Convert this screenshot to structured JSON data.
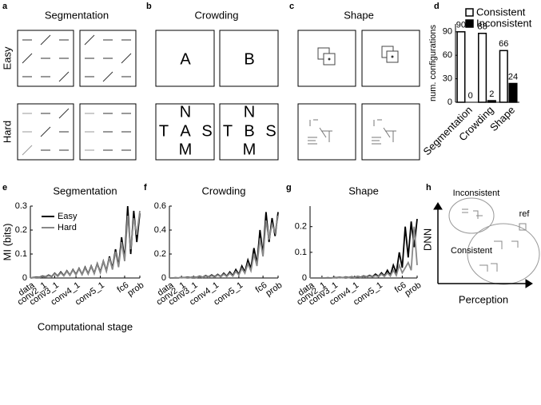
{
  "panel_letters": [
    "a",
    "b",
    "c",
    "d",
    "e",
    "f",
    "g",
    "h"
  ],
  "stimuli": {
    "titles": [
      "Segmentation",
      "Crowding",
      "Shape"
    ],
    "rows": [
      "Easy",
      "Hard"
    ],
    "crowding": {
      "easy": [
        "A",
        "B"
      ],
      "hard": [
        [
          "N",
          "T",
          "A",
          "S",
          "M"
        ],
        [
          "N",
          "T",
          "B",
          "S",
          "M"
        ]
      ]
    }
  },
  "diagram": {
    "groups": [
      "Inconsistent",
      "Consistent"
    ],
    "ref": "ref",
    "y_label": "DNN",
    "x_label": "Perception"
  },
  "chart_data": [
    {
      "type": "bar",
      "y_label": "num. configurations",
      "categories": [
        "Segmentation",
        "Crowding",
        "Shape"
      ],
      "series": [
        {
          "name": "Consistent",
          "color": "#ffffff",
          "values": [
            90,
            88,
            66
          ]
        },
        {
          "name": "Inconsistent",
          "color": "#000000",
          "values": [
            0,
            2,
            24
          ]
        }
      ],
      "ylim": [
        0,
        100
      ],
      "yticks": [
        0,
        30,
        60,
        90
      ],
      "legend": "top-right"
    },
    {
      "type": "line",
      "title": "Segmentation",
      "y_label": "MI (bits)",
      "x_label": "Computational stage",
      "x": [
        0,
        1,
        2,
        3,
        4,
        5,
        6,
        7,
        8,
        9,
        10,
        11,
        12,
        13,
        14,
        15,
        16,
        17,
        18,
        19,
        20,
        21,
        22,
        23,
        24,
        25,
        26,
        27,
        28,
        29,
        30,
        31,
        32,
        33,
        34,
        35,
        36
      ],
      "xlim": [
        0,
        36
      ],
      "xticks": [
        {
          "value": 0,
          "label": "data"
        },
        {
          "value": 4,
          "label": "conv2_1"
        },
        {
          "value": 8,
          "label": "conv3_1"
        },
        {
          "value": 15,
          "label": "conv4_1"
        },
        {
          "value": 23,
          "label": "conv5_1"
        },
        {
          "value": 31,
          "label": "fc6"
        },
        {
          "value": 36,
          "label": "prob"
        }
      ],
      "ylim": [
        0,
        0.3
      ],
      "yticks": [
        0,
        0.1,
        0.2,
        0.3
      ],
      "legend": "top-left",
      "series": [
        {
          "name": "Easy",
          "color": "#000000",
          "values": [
            0,
            0.002,
            0.004,
            0.003,
            0.008,
            0.005,
            0.012,
            0.006,
            0.02,
            0.008,
            0.025,
            0.01,
            0.03,
            0.012,
            0.035,
            0.015,
            0.04,
            0.015,
            0.045,
            0.018,
            0.05,
            0.02,
            0.06,
            0.025,
            0.07,
            0.03,
            0.09,
            0.04,
            0.12,
            0.05,
            0.17,
            0.08,
            0.3,
            0.1,
            0.28,
            0.15,
            0.27
          ]
        },
        {
          "name": "Hard",
          "color": "#888888",
          "values": [
            0,
            0.001,
            0.003,
            0.002,
            0.006,
            0.004,
            0.01,
            0.005,
            0.018,
            0.007,
            0.022,
            0.009,
            0.028,
            0.011,
            0.033,
            0.013,
            0.038,
            0.014,
            0.042,
            0.016,
            0.048,
            0.018,
            0.058,
            0.022,
            0.068,
            0.028,
            0.085,
            0.035,
            0.11,
            0.045,
            0.15,
            0.07,
            0.26,
            0.12,
            0.25,
            0.18,
            0.28
          ]
        }
      ]
    },
    {
      "type": "line",
      "title": "Crowding",
      "x": [
        0,
        1,
        2,
        3,
        4,
        5,
        6,
        7,
        8,
        9,
        10,
        11,
        12,
        13,
        14,
        15,
        16,
        17,
        18,
        19,
        20,
        21,
        22,
        23,
        24,
        25,
        26,
        27,
        28,
        29,
        30,
        31,
        32,
        33,
        34,
        35,
        36
      ],
      "xlim": [
        0,
        36
      ],
      "xticks": [
        {
          "value": 0,
          "label": "data"
        },
        {
          "value": 4,
          "label": "conv2_1"
        },
        {
          "value": 8,
          "label": "conv3_1"
        },
        {
          "value": 15,
          "label": "conv4_1"
        },
        {
          "value": 23,
          "label": "conv5_1"
        },
        {
          "value": 31,
          "label": "fc6"
        },
        {
          "value": 36,
          "label": "prob"
        }
      ],
      "ylim": [
        0,
        0.6
      ],
      "yticks": [
        0,
        0.2,
        0.4,
        0.6
      ],
      "series": [
        {
          "color": "#000000",
          "values": [
            0,
            0,
            0.002,
            0.001,
            0.005,
            0.003,
            0.008,
            0.004,
            0.01,
            0.005,
            0.015,
            0.006,
            0.02,
            0.008,
            0.025,
            0.01,
            0.03,
            0.012,
            0.04,
            0.015,
            0.05,
            0.02,
            0.07,
            0.03,
            0.1,
            0.05,
            0.15,
            0.08,
            0.25,
            0.12,
            0.4,
            0.2,
            0.55,
            0.3,
            0.5,
            0.35,
            0.55
          ]
        },
        {
          "color": "#888888",
          "values": [
            0,
            0,
            0.001,
            0.001,
            0.004,
            0.002,
            0.006,
            0.003,
            0.008,
            0.004,
            0.012,
            0.005,
            0.016,
            0.006,
            0.02,
            0.008,
            0.025,
            0.01,
            0.032,
            0.012,
            0.04,
            0.016,
            0.055,
            0.025,
            0.08,
            0.04,
            0.12,
            0.06,
            0.2,
            0.1,
            0.33,
            0.18,
            0.48,
            0.32,
            0.45,
            0.38,
            0.52
          ]
        }
      ]
    },
    {
      "type": "line",
      "title": "Shape",
      "x": [
        0,
        1,
        2,
        3,
        4,
        5,
        6,
        7,
        8,
        9,
        10,
        11,
        12,
        13,
        14,
        15,
        16,
        17,
        18,
        19,
        20,
        21,
        22,
        23,
        24,
        25,
        26,
        27,
        28,
        29,
        30,
        31,
        32,
        33,
        34,
        35,
        36
      ],
      "xlim": [
        0,
        36
      ],
      "xticks": [
        {
          "value": 0,
          "label": "data"
        },
        {
          "value": 4,
          "label": "conv2_1"
        },
        {
          "value": 8,
          "label": "conv3_1"
        },
        {
          "value": 15,
          "label": "conv4_1"
        },
        {
          "value": 23,
          "label": "conv5_1"
        },
        {
          "value": 31,
          "label": "fc6"
        },
        {
          "value": 36,
          "label": "prob"
        }
      ],
      "ylim": [
        0,
        0.28
      ],
      "yticks": [
        0,
        0.1,
        0.2
      ],
      "series": [
        {
          "color": "#000000",
          "values": [
            0,
            0,
            0,
            0,
            0,
            0,
            0.001,
            0,
            0.002,
            0.001,
            0.003,
            0.001,
            0.004,
            0.002,
            0.005,
            0.002,
            0.006,
            0.003,
            0.008,
            0.004,
            0.01,
            0.005,
            0.015,
            0.006,
            0.02,
            0.008,
            0.03,
            0.01,
            0.05,
            0.02,
            0.1,
            0.04,
            0.2,
            0.08,
            0.22,
            0.12,
            0.23
          ]
        },
        {
          "color": "#888888",
          "values": [
            0,
            0,
            0,
            0,
            0,
            0,
            0,
            0,
            0.001,
            0,
            0.002,
            0.001,
            0.003,
            0.001,
            0.004,
            0.002,
            0.005,
            0.002,
            0.006,
            0.003,
            0.008,
            0.004,
            0.01,
            0.005,
            0.015,
            0.006,
            0.02,
            0.008,
            0.03,
            0.01,
            0.05,
            0.02,
            0.04,
            0.06,
            0.03,
            0.2,
            0.05
          ]
        }
      ]
    }
  ]
}
